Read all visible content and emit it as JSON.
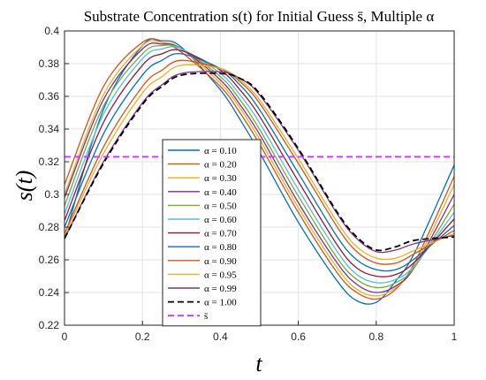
{
  "chart_data": {
    "type": "line",
    "title": "Substrate Concentration s(t) for Initial Guess s̄, Multiple α",
    "xlabel": "t",
    "ylabel": "s(t)",
    "xlim": [
      0,
      1
    ],
    "ylim": [
      0.22,
      0.4
    ],
    "xticks": [
      "0",
      "0.2",
      "0.4",
      "0.6",
      "0.8",
      "1"
    ],
    "yticks": [
      "0.22",
      "0.24",
      "0.26",
      "0.28",
      "0.3",
      "0.32",
      "0.34",
      "0.36",
      "0.38",
      "0.4"
    ],
    "grid": true,
    "legend_position": "bottom-center",
    "x": [
      0,
      0.1,
      0.2,
      0.25,
      0.3,
      0.4,
      0.45,
      0.5,
      0.6,
      0.7,
      0.75,
      0.8,
      0.85,
      0.9,
      1.0
    ],
    "series": [
      {
        "name": "α = 0.10",
        "color": "#0072BD",
        "dash": false,
        "values": [
          0.273,
          0.352,
          0.391,
          0.394,
          0.39,
          0.364,
          0.346,
          0.326,
          0.283,
          0.247,
          0.235,
          0.234,
          0.247,
          0.265,
          0.318
        ]
      },
      {
        "name": "α = 0.20",
        "color": "#D95319",
        "dash": false,
        "values": [
          0.306,
          0.366,
          0.393,
          0.393,
          0.387,
          0.366,
          0.35,
          0.331,
          0.289,
          0.252,
          0.24,
          0.236,
          0.242,
          0.259,
          0.311
        ]
      },
      {
        "name": "α = 0.30",
        "color": "#EDB120",
        "dash": false,
        "values": [
          0.3,
          0.361,
          0.391,
          0.393,
          0.389,
          0.368,
          0.353,
          0.334,
          0.292,
          0.255,
          0.242,
          0.238,
          0.243,
          0.257,
          0.306
        ]
      },
      {
        "name": "α = 0.40",
        "color": "#7E2F8E",
        "dash": false,
        "values": [
          0.298,
          0.358,
          0.389,
          0.392,
          0.389,
          0.37,
          0.355,
          0.337,
          0.295,
          0.258,
          0.245,
          0.24,
          0.244,
          0.256,
          0.3
        ]
      },
      {
        "name": "α = 0.50",
        "color": "#77AC30",
        "dash": false,
        "values": [
          0.293,
          0.354,
          0.386,
          0.391,
          0.389,
          0.372,
          0.358,
          0.34,
          0.299,
          0.261,
          0.248,
          0.243,
          0.246,
          0.256,
          0.294
        ]
      },
      {
        "name": "α = 0.60",
        "color": "#4DBEEE",
        "dash": false,
        "values": [
          0.288,
          0.349,
          0.383,
          0.389,
          0.389,
          0.374,
          0.361,
          0.344,
          0.303,
          0.265,
          0.251,
          0.246,
          0.248,
          0.257,
          0.289
        ]
      },
      {
        "name": "α = 0.70",
        "color": "#A2142F",
        "dash": false,
        "values": [
          0.284,
          0.344,
          0.379,
          0.386,
          0.388,
          0.376,
          0.364,
          0.348,
          0.308,
          0.269,
          0.255,
          0.25,
          0.251,
          0.259,
          0.285
        ]
      },
      {
        "name": "α = 0.80",
        "color": "#0072BD",
        "dash": false,
        "values": [
          0.28,
          0.337,
          0.373,
          0.382,
          0.386,
          0.377,
          0.367,
          0.352,
          0.313,
          0.274,
          0.26,
          0.254,
          0.254,
          0.261,
          0.281
        ]
      },
      {
        "name": "α = 0.90",
        "color": "#D95319",
        "dash": false,
        "values": [
          0.276,
          0.329,
          0.366,
          0.376,
          0.382,
          0.377,
          0.369,
          0.356,
          0.319,
          0.28,
          0.265,
          0.258,
          0.258,
          0.264,
          0.278
        ]
      },
      {
        "name": "α = 0.95",
        "color": "#EDB120",
        "dash": false,
        "values": [
          0.275,
          0.325,
          0.362,
          0.372,
          0.379,
          0.377,
          0.37,
          0.358,
          0.322,
          0.283,
          0.268,
          0.261,
          0.261,
          0.266,
          0.276
        ]
      },
      {
        "name": "α = 0.99",
        "color": "#7E2F8E",
        "dash": false,
        "values": [
          0.273,
          0.32,
          0.356,
          0.367,
          0.374,
          0.375,
          0.371,
          0.361,
          0.327,
          0.288,
          0.273,
          0.265,
          0.266,
          0.27,
          0.275
        ]
      },
      {
        "name": "α = 1.00",
        "color": "#000000",
        "dash": true,
        "values": [
          0.273,
          0.319,
          0.355,
          0.366,
          0.373,
          0.374,
          0.371,
          0.362,
          0.328,
          0.289,
          0.274,
          0.266,
          0.268,
          0.272,
          0.274
        ]
      },
      {
        "name": "s̄",
        "color": "#CC33FF",
        "dash": true,
        "values": [
          0.323,
          0.323,
          0.323,
          0.323,
          0.323,
          0.323,
          0.323,
          0.323,
          0.323,
          0.323,
          0.323,
          0.323,
          0.323,
          0.323,
          0.323
        ]
      }
    ]
  }
}
